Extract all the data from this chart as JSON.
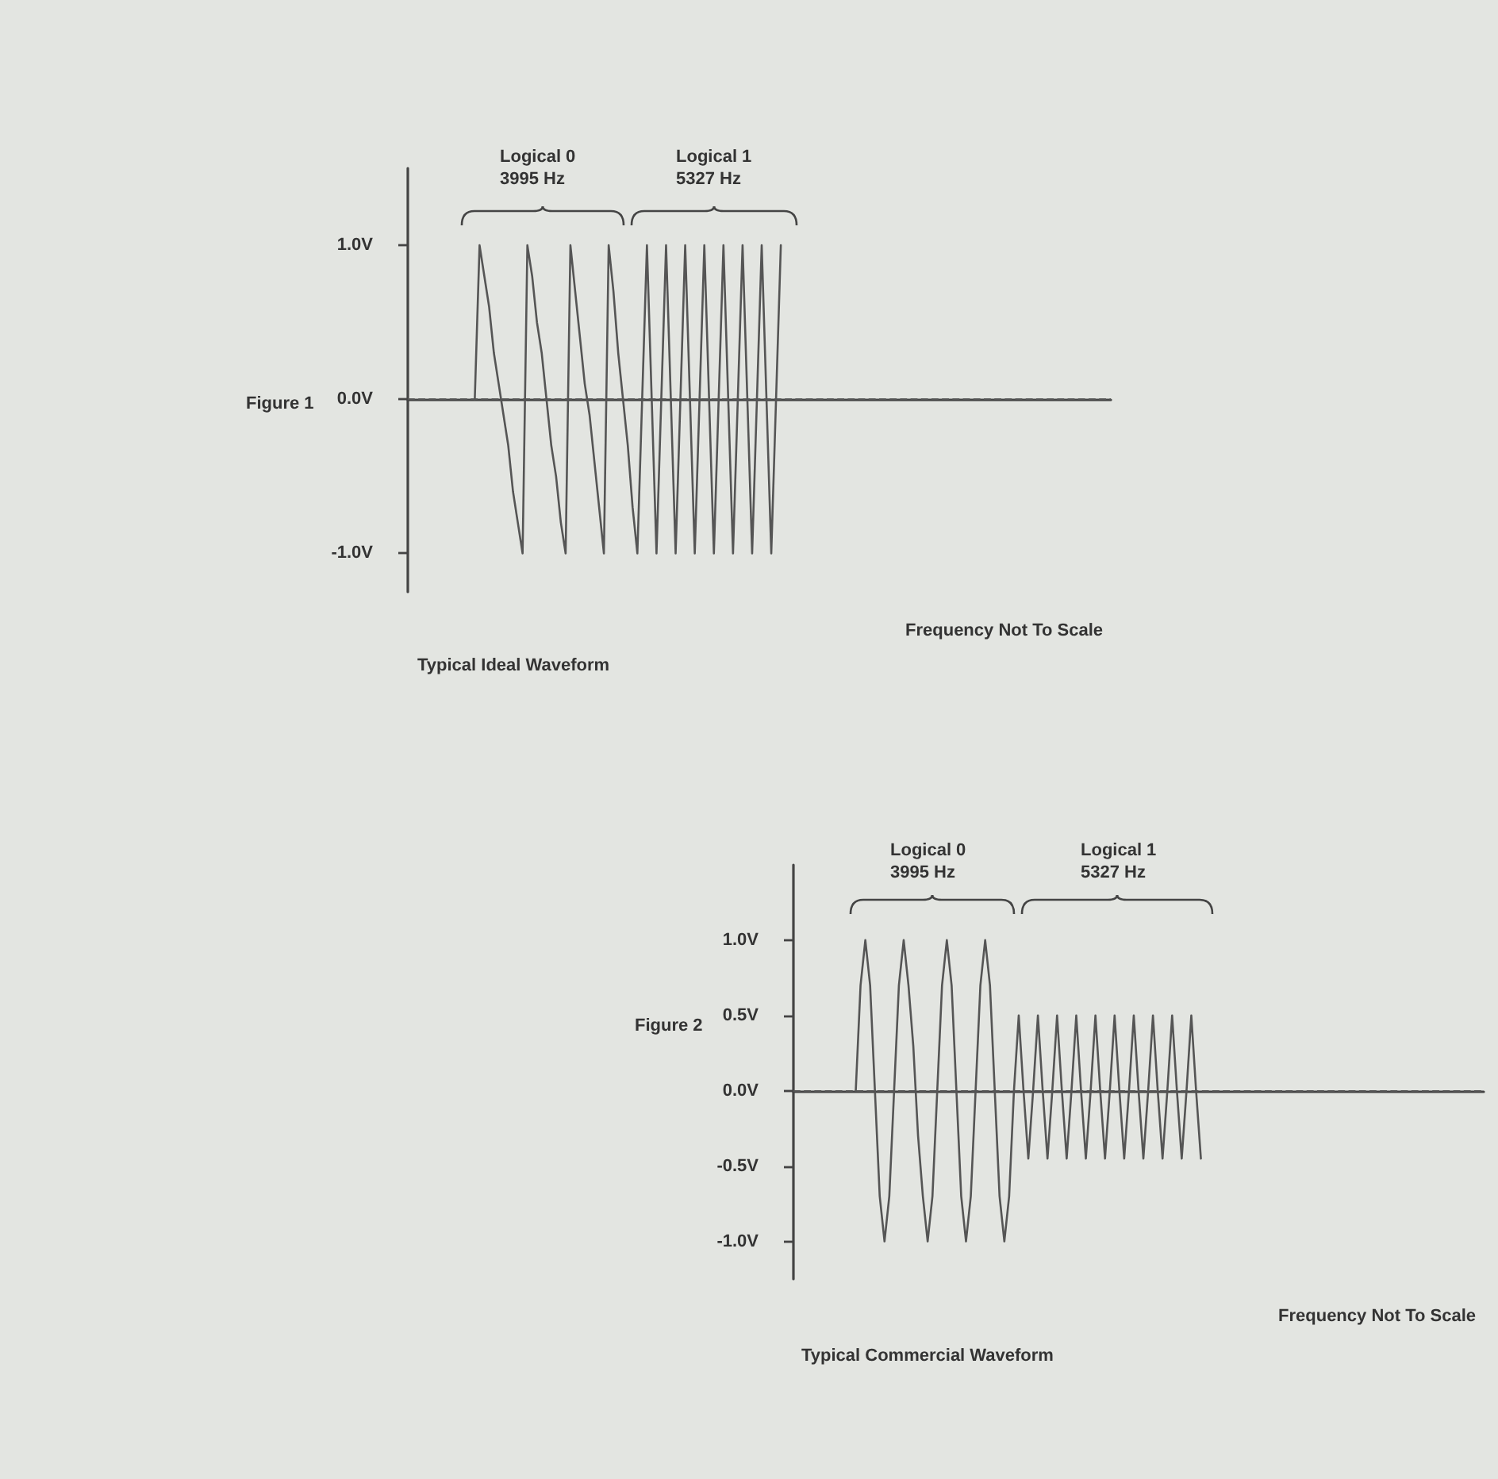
{
  "chart_data": [
    {
      "type": "line",
      "title": "Figure 1",
      "subtitle": "Typical Ideal Waveform",
      "xlabel": "Frequency Not To Scale",
      "annotations": [
        "Logical 0\n3995 Hz",
        "Logical 1\n5327 Hz"
      ],
      "categories": [
        null,
        null,
        null,
        null,
        null,
        null,
        null,
        null,
        null,
        null,
        null,
        null,
        null,
        null,
        null,
        null,
        null,
        null,
        null,
        null,
        null,
        null,
        null,
        null,
        null,
        null,
        null,
        null,
        null,
        null,
        null,
        null,
        null,
        null,
        null,
        null,
        null,
        null,
        null,
        null,
        null,
        null,
        null,
        null,
        null,
        null,
        null,
        null,
        null,
        null,
        null,
        null,
        null,
        null,
        null,
        null,
        null,
        null,
        null,
        null,
        null,
        null,
        null,
        null,
        null,
        null,
        null,
        null,
        null,
        null,
        null,
        null,
        null,
        null,
        null,
        null,
        null,
        null,
        null,
        null,
        null,
        null,
        null,
        null,
        null,
        null,
        null,
        null,
        null,
        null,
        null,
        null,
        null,
        null,
        null,
        null,
        null,
        null,
        null,
        null,
        null,
        null,
        null,
        null,
        null,
        null,
        null,
        null,
        null,
        null,
        null,
        null,
        null,
        null,
        null,
        null,
        null,
        null,
        null,
        null,
        null,
        null,
        null,
        null,
        null,
        null,
        null,
        null,
        null,
        null,
        null,
        null,
        null,
        null,
        null,
        null,
        null,
        null,
        null,
        null,
        null,
        null,
        null,
        null,
        null,
        null,
        null,
        null
      ],
      "series": [
        {
          "color": "#555555",
          "values": [
            null,
            null,
            null,
            null,
            null,
            null,
            null,
            null,
            null,
            null,
            null,
            null,
            null,
            null,
            0,
            1,
            0.8,
            0.6,
            0.3,
            0.1,
            -0.1,
            -0.3,
            -0.6,
            -0.8,
            -1,
            1,
            0.8,
            0.5,
            0.3,
            0,
            -0.3,
            -0.5,
            -0.8,
            -1,
            1,
            0.7,
            0.4,
            0.1,
            -0.1,
            -0.4,
            -0.7,
            -1,
            1,
            0.7,
            0.3,
            0,
            -0.3,
            -0.7,
            -1,
            0,
            1,
            0,
            -1,
            0,
            1,
            0,
            -1,
            0,
            1,
            0,
            -1,
            0,
            1,
            0,
            -1,
            0,
            1,
            0,
            -1,
            0,
            1,
            0,
            -1,
            0,
            1,
            0,
            -1,
            0,
            1,
            null,
            null,
            null,
            null,
            null,
            null,
            null,
            null,
            null,
            null,
            null,
            null,
            null,
            null,
            null,
            null,
            null,
            null,
            null,
            null,
            null,
            null,
            null,
            null,
            null,
            null,
            null,
            null,
            null,
            null,
            null,
            null,
            null,
            null,
            null,
            null,
            null,
            null,
            null,
            null,
            null,
            null,
            null,
            null,
            null,
            null,
            null,
            null,
            null,
            null,
            null,
            null,
            null,
            null,
            null,
            null,
            null,
            null,
            null,
            null,
            null,
            null,
            null,
            null,
            null,
            null,
            null,
            null,
            null
          ]
        }
      ],
      "ylim": [
        -1.25,
        1.5
      ],
      "yticks": [
        {
          "value": -1,
          "label": "-1.0V"
        },
        {
          "value": 0,
          "label": "0.0V"
        },
        {
          "value": 1,
          "label": "1.0V"
        }
      ],
      "ref_lines": [
        {
          "axis": "y",
          "value": 0,
          "line_style": "dashed",
          "color": "#555555"
        }
      ],
      "tick_labels": "y",
      "marker": "none",
      "line_style": "solid",
      "grid": false
    },
    {
      "type": "line",
      "title": "Figure 2",
      "subtitle": "Typical Commercial Waveform",
      "xlabel": "Frequency Not To Scale",
      "annotations": [
        "Logical 0\n3995 Hz",
        "Logical 1\n5327 Hz"
      ],
      "categories": [
        null,
        null,
        null,
        null,
        null,
        null,
        null,
        null,
        null,
        null,
        null,
        null,
        null,
        null,
        null,
        null,
        null,
        null,
        null,
        null,
        null,
        null,
        null,
        null,
        null,
        null,
        null,
        null,
        null,
        null,
        null,
        null,
        null,
        null,
        null,
        null,
        null,
        null,
        null,
        null,
        null,
        null,
        null,
        null,
        null,
        null,
        null,
        null,
        null,
        null,
        null,
        null,
        null,
        null,
        null,
        null,
        null,
        null,
        null,
        null,
        null,
        null,
        null,
        null,
        null,
        null,
        null,
        null,
        null,
        null,
        null,
        null,
        null,
        null,
        null,
        null,
        null,
        null,
        null,
        null,
        null,
        null,
        null,
        null,
        null,
        null,
        null,
        null,
        null,
        null,
        null,
        null,
        null,
        null,
        null,
        null,
        null,
        null,
        null,
        null,
        null,
        null,
        null,
        null,
        null,
        null,
        null,
        null,
        null,
        null,
        null,
        null,
        null,
        null,
        null,
        null,
        null,
        null,
        null,
        null,
        null,
        null,
        null,
        null,
        null,
        null,
        null,
        null,
        null,
        null,
        null,
        null,
        null,
        null,
        null,
        null,
        null,
        null,
        null,
        null,
        null,
        null,
        null,
        null,
        null
      ],
      "series": [
        {
          "color": "#555555",
          "values": [
            null,
            null,
            null,
            null,
            null,
            null,
            null,
            null,
            null,
            null,
            null,
            null,
            null,
            0,
            0.7,
            1,
            0.7,
            0,
            -0.7,
            -1,
            -0.7,
            0,
            0.7,
            1,
            0.7,
            0.3,
            -0.3,
            -0.7,
            -1,
            -0.7,
            0,
            0.7,
            1,
            0.7,
            0,
            -0.7,
            -1,
            -0.7,
            0,
            0.7,
            1,
            0.7,
            0,
            -0.7,
            -1,
            -0.7,
            0,
            0.5,
            0,
            -0.45,
            0,
            0.5,
            0,
            -0.45,
            0,
            0.5,
            0,
            -0.45,
            0,
            0.5,
            0,
            -0.45,
            0,
            0.5,
            0,
            -0.45,
            0,
            0.5,
            0,
            -0.45,
            0,
            0.5,
            0,
            -0.45,
            0,
            0.5,
            0,
            -0.45,
            0,
            0.5,
            0,
            -0.45,
            0,
            0.5,
            0,
            -0.45,
            null,
            null,
            null,
            null,
            null,
            null,
            null,
            null,
            null,
            null,
            null,
            null,
            null,
            null,
            null,
            null,
            null,
            null,
            null,
            null,
            null,
            null,
            null,
            null,
            null,
            null,
            null,
            null,
            null,
            null,
            null,
            null,
            null,
            null,
            null,
            null,
            null,
            null,
            null,
            null,
            null,
            null,
            null,
            null,
            null,
            null,
            null,
            null,
            null,
            null,
            null,
            null,
            null,
            null,
            null,
            null,
            null,
            null,
            null
          ]
        }
      ],
      "ylim": [
        -1.25,
        1.5
      ],
      "yticks": [
        {
          "value": -1,
          "label": "-1.0V"
        },
        {
          "value": -0.5,
          "label": "-0.5V"
        },
        {
          "value": 0,
          "label": "0.0V"
        },
        {
          "value": 0.5,
          "label": "0.5V"
        },
        {
          "value": 1,
          "label": "1.0V"
        }
      ],
      "ref_lines": [
        {
          "axis": "y",
          "value": 0,
          "line_style": "dashed",
          "color": "#555555"
        }
      ],
      "tick_labels": "y",
      "marker": "none",
      "line_style": "solid",
      "grid": false
    }
  ]
}
